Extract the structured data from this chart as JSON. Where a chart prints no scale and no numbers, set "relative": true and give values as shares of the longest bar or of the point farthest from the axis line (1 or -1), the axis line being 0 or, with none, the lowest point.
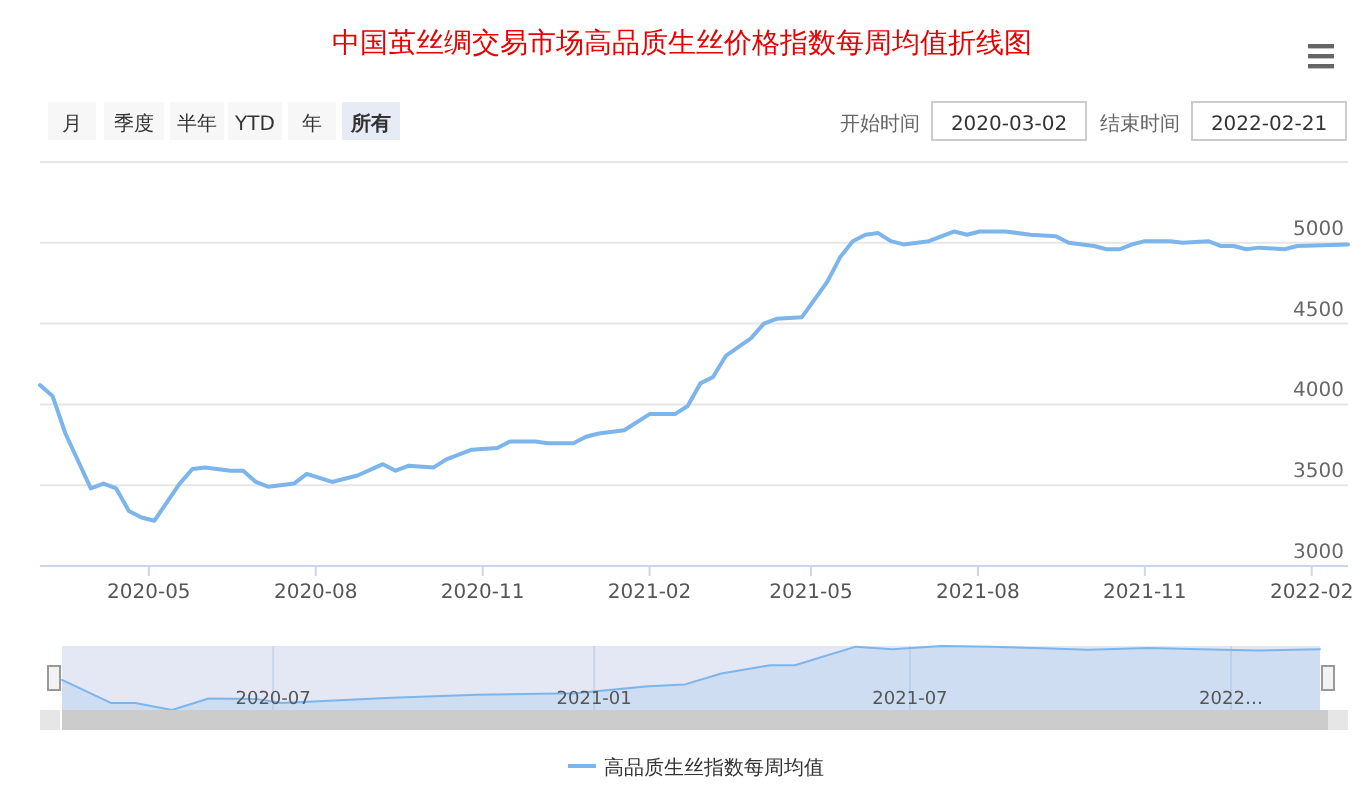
{
  "chart_data": [
    {
      "type": "line",
      "title": "中国茧丝绸交易市场高品质生丝价格指数每周均值折线图",
      "annotations": [
        "月",
        "季度",
        "半年",
        "YTD",
        "年",
        "所有",
        "开始时间",
        "2020-03-02",
        "结束时间",
        "2022-02-21"
      ],
      "x": [
        "2020-03-02",
        "2020-03-09",
        "2020-03-16",
        "2020-03-30",
        "2020-04-06",
        "2020-04-13",
        "2020-04-20",
        "2020-04-27",
        "2020-05-04",
        "2020-05-18",
        "2020-05-25",
        "2020-06-01",
        "2020-06-15",
        "2020-06-22",
        "2020-06-29",
        "2020-07-06",
        "2020-07-20",
        "2020-07-27",
        "2020-08-10",
        "2020-08-24",
        "2020-09-07",
        "2020-09-14",
        "2020-09-21",
        "2020-10-05",
        "2020-10-12",
        "2020-10-26",
        "2020-11-09",
        "2020-11-16",
        "2020-11-30",
        "2020-12-07",
        "2020-12-21",
        "2020-12-28",
        "2021-01-04",
        "2021-01-18",
        "2021-02-01",
        "2021-02-08",
        "2021-02-15",
        "2021-02-22",
        "2021-03-01",
        "2021-03-08",
        "2021-03-15",
        "2021-03-29",
        "2021-04-05",
        "2021-04-12",
        "2021-04-26",
        "2021-05-10",
        "2021-05-17",
        "2021-05-24",
        "2021-05-31",
        "2021-06-07",
        "2021-06-14",
        "2021-06-21",
        "2021-07-05",
        "2021-07-19",
        "2021-07-26",
        "2021-08-02",
        "2021-08-16",
        "2021-08-30",
        "2021-09-13",
        "2021-09-20",
        "2021-10-04",
        "2021-10-11",
        "2021-10-18",
        "2021-10-25",
        "2021-11-01",
        "2021-11-15",
        "2021-11-22",
        "2021-12-06",
        "2021-12-13",
        "2021-12-20",
        "2021-12-27",
        "2022-01-03",
        "2022-01-17",
        "2022-01-24",
        "2022-02-21"
      ],
      "series": [
        {
          "name": "高品质生丝指数每周均值",
          "color": "#7cb5ec",
          "values": [
            4120,
            4050,
            3820,
            3480,
            3510,
            3480,
            3340,
            3300,
            3280,
            3510,
            3600,
            3610,
            3590,
            3590,
            3520,
            3490,
            3510,
            3570,
            3520,
            3560,
            3630,
            3590,
            3620,
            3610,
            3660,
            3720,
            3730,
            3770,
            3770,
            3760,
            3760,
            3800,
            3820,
            3840,
            3940,
            3940,
            3940,
            3990,
            4130,
            4170,
            4300,
            4410,
            4500,
            4530,
            4540,
            4760,
            4910,
            5010,
            5050,
            5060,
            5010,
            4990,
            5010,
            5070,
            5050,
            5070,
            5070,
            5050,
            5040,
            5000,
            4980,
            4960,
            4960,
            4990,
            5010,
            5010,
            5000,
            5010,
            4980,
            4980,
            4960,
            4970,
            4960,
            4980,
            4990
          ]
        }
      ],
      "xlim": [
        "2020-03-02",
        "2022-02-21"
      ],
      "xticks": [
        {
          "value": "2020-05-01",
          "label": "2020-05"
        },
        {
          "value": "2020-08-01",
          "label": "2020-08"
        },
        {
          "value": "2020-11-01",
          "label": "2020-11"
        },
        {
          "value": "2021-02-01",
          "label": "2021-02"
        },
        {
          "value": "2021-05-01",
          "label": "2021-05"
        },
        {
          "value": "2021-08-01",
          "label": "2021-08"
        },
        {
          "value": "2021-11-01",
          "label": "2021-11"
        },
        {
          "value": "2022-02-01",
          "label": "2022-02"
        }
      ],
      "ylim": [
        3000,
        5500
      ],
      "yticks": [
        3000,
        3500,
        4000,
        4500,
        5000,
        {
          "value": 5500,
          "label": null
        }
      ],
      "grid": "y",
      "legend": "bottom",
      "marker": "none",
      "line_style": "solid"
    },
    {
      "type": "area",
      "relative": true,
      "x": [
        "2020-03-02",
        "2020-03-30",
        "2020-04-13",
        "2020-05-04",
        "2020-05-25",
        "2020-06-22",
        "2020-07-06",
        "2020-09-07",
        "2020-10-26",
        "2020-12-21",
        "2021-02-01",
        "2021-02-22",
        "2021-03-15",
        "2021-04-12",
        "2021-04-26",
        "2021-05-31",
        "2021-06-21",
        "2021-07-19",
        "2021-08-16",
        "2021-09-20",
        "2021-10-11",
        "2021-11-15",
        "2021-12-27",
        "2022-01-17",
        "2022-02-21"
      ],
      "series": [
        {
          "color": "#7cb5ec",
          "values": [
            0.47,
            0.11,
            0.11,
            0,
            0.18,
            0.17,
            0.11,
            0.19,
            0.24,
            0.26,
            0.37,
            0.4,
            0.57,
            0.7,
            0.7,
            0.99,
            0.95,
            1,
            0.99,
            0.96,
            0.94,
            0.97,
            0.94,
            0.93,
            0.95
          ]
        }
      ],
      "xlim": [
        "2020-03-02",
        "2022-02-21"
      ],
      "xticks": [
        {
          "value": "2020-07-01",
          "label": "2020-07"
        },
        {
          "value": "2021-01-01",
          "label": "2021-01"
        },
        {
          "value": "2021-07-01",
          "label": "2021-07"
        },
        {
          "value": "2022-01-01",
          "label": "2022…"
        }
      ],
      "tick_labels": "x",
      "grid": "x"
    }
  ]
}
